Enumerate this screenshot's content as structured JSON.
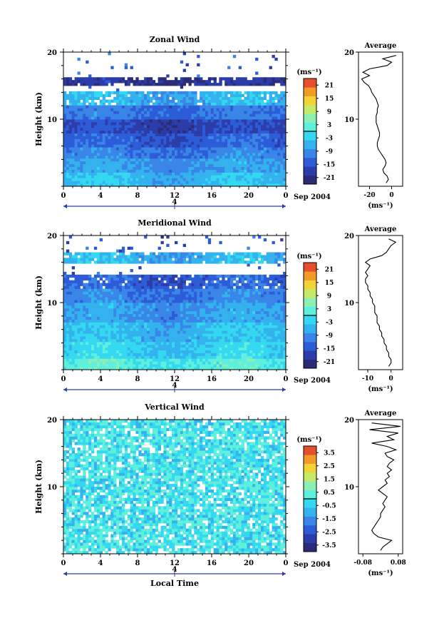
{
  "common": {
    "x_ticks": [
      "0",
      "4",
      "8",
      "12",
      "16",
      "20",
      "0"
    ],
    "day_label": "4",
    "date_label": "Sep 2004",
    "y_ticks": [
      "20",
      "10"
    ],
    "ylabel": "Height (km)",
    "unit_label": "(ms⁻¹)",
    "avg_title": "Average",
    "xlabel": "Local Time"
  },
  "chart_data": [
    {
      "type": "heatmap",
      "title": "Zonal Wind",
      "xlabel": "",
      "ylabel": "Height (km)",
      "xlim": [
        0,
        24
      ],
      "ylim": [
        0,
        20
      ],
      "colorbar": {
        "unit": "(ms⁻¹)",
        "ticks": [
          "21",
          "15",
          "9",
          "3",
          "-3",
          "-9",
          "-15",
          "-21"
        ],
        "range": [
          -24,
          24
        ]
      },
      "description_values": {
        "layers": [
          {
            "h": [
              0,
              2
            ],
            "v": -5
          },
          {
            "h": [
              2,
              4
            ],
            "v": -8
          },
          {
            "h": [
              4,
              6
            ],
            "v": -11
          },
          {
            "h": [
              6,
              8
            ],
            "v": -14
          },
          {
            "h": [
              8,
              10
            ],
            "v": -17
          },
          {
            "h": [
              10,
              12
            ],
            "v": -12
          },
          {
            "h": [
              12,
              14
            ],
            "v": -6
          },
          {
            "h": [
              14,
              15.2
            ],
            "v": null
          },
          {
            "h": [
              15.2,
              16.2
            ],
            "v": -20
          },
          {
            "h": [
              16.2,
              20
            ],
            "v": null
          }
        ]
      },
      "average_profile": {
        "title": "Average",
        "xticks": [
          "-20",
          "0"
        ],
        "xlabel": "(ms⁻¹)",
        "xlim": [
          -30,
          10
        ],
        "height": [
          0.5,
          1,
          1.5,
          2,
          2.5,
          3,
          3.5,
          4,
          4.5,
          5,
          5.5,
          6,
          6.5,
          7,
          7.5,
          8,
          8.5,
          9,
          9.5,
          10,
          10.5,
          11,
          11.5,
          12,
          12.5,
          13,
          13.5,
          14,
          14.5,
          15,
          15.5,
          16,
          16.5,
          17,
          17.5,
          18,
          18.5,
          19,
          19.5
        ],
        "value": [
          -5,
          -3,
          -4,
          -7,
          -8,
          -6,
          -5,
          -6,
          -8,
          -10,
          -12,
          -13,
          -13,
          -12,
          -11,
          -11,
          -12,
          -13,
          -14,
          -14,
          -14,
          -13,
          -13,
          -12,
          -13,
          -14,
          -16,
          -18,
          -19,
          -21,
          -25,
          -27,
          -20,
          -26,
          -20,
          -4,
          0,
          -8,
          4
        ]
      }
    },
    {
      "type": "heatmap",
      "title": "Meridional Wind",
      "xlabel": "",
      "ylabel": "Height (km)",
      "xlim": [
        0,
        24
      ],
      "ylim": [
        0,
        20
      ],
      "colorbar": {
        "unit": "(ms⁻¹)",
        "ticks": [
          "21",
          "15",
          "9",
          "3",
          "-3",
          "-9",
          "-15",
          "-21"
        ],
        "range": [
          -24,
          24
        ]
      },
      "description_values": {
        "layers": [
          {
            "h": [
              0,
              1.5
            ],
            "v": 1
          },
          {
            "h": [
              1.5,
              4
            ],
            "v": -3
          },
          {
            "h": [
              4,
              7
            ],
            "v": -5
          },
          {
            "h": [
              7,
              10
            ],
            "v": -8
          },
          {
            "h": [
              10,
              12
            ],
            "v": -11
          },
          {
            "h": [
              12,
              14
            ],
            "v": -14
          },
          {
            "h": [
              14,
              16
            ],
            "v": null
          },
          {
            "h": [
              16,
              17.5
            ],
            "v": -6
          },
          {
            "h": [
              17.5,
              20
            ],
            "v": null
          }
        ]
      },
      "average_profile": {
        "title": "Average",
        "xticks": [
          "-10",
          "0"
        ],
        "xlabel": "(ms⁻¹)",
        "xlim": [
          -14,
          5
        ],
        "height": [
          0.5,
          1,
          1.5,
          2,
          2.5,
          3,
          3.5,
          4,
          4.5,
          5,
          5.5,
          6,
          6.5,
          7,
          7.5,
          8,
          8.5,
          9,
          9.5,
          10,
          10.5,
          11,
          11.5,
          12,
          12.5,
          13,
          13.5,
          14,
          14.5,
          15,
          15.5,
          16,
          16.5,
          17,
          17.5,
          18,
          18.5,
          19,
          19.5
        ],
        "value": [
          -1,
          0,
          0,
          -1,
          -1,
          -2,
          -2,
          -3,
          -3,
          -4,
          -4,
          -5,
          -5,
          -6,
          -6,
          -6,
          -7,
          -7,
          -7,
          -8,
          -8,
          -9,
          -9,
          -10,
          -10,
          -11,
          -11,
          -10,
          -11,
          -10,
          -9,
          -11,
          -9,
          -4,
          -2,
          -1,
          0,
          2,
          -1
        ]
      }
    },
    {
      "type": "heatmap",
      "title": "Vertical Wind",
      "xlabel": "Local Time",
      "ylabel": "Height (km)",
      "xlim": [
        0,
        24
      ],
      "ylim": [
        0,
        20
      ],
      "colorbar": {
        "unit": "(ms⁻¹)",
        "ticks": [
          "3.5",
          "2.5",
          "1.5",
          "0.5",
          "-0.5",
          "-1.5",
          "-2.5",
          "-3.5"
        ],
        "range": [
          -4,
          4
        ]
      },
      "description_values": {
        "layers": [
          {
            "h": [
              0,
              20
            ],
            "v": 0.3
          }
        ]
      },
      "average_profile": {
        "title": "Average",
        "xticks": [
          "-0.08",
          "0.08"
        ],
        "xlabel": "(ms⁻¹)",
        "xlim": [
          -0.1,
          0.1
        ],
        "height": [
          0.5,
          1,
          1.5,
          2,
          2.5,
          3,
          3.5,
          4,
          4.5,
          5,
          5.5,
          6,
          6.5,
          7,
          7.5,
          8,
          8.5,
          9,
          9.5,
          10,
          10.5,
          11,
          11.5,
          12,
          12.5,
          13,
          13.5,
          14,
          14.5,
          15,
          15.5,
          16,
          16.5,
          17,
          17.5,
          18,
          18.5,
          19,
          19.5
        ],
        "value": [
          0.0,
          0.01,
          0.03,
          0.05,
          -0.01,
          -0.03,
          -0.04,
          -0.03,
          -0.02,
          -0.01,
          0.0,
          0.0,
          0.01,
          0.02,
          0.01,
          0.02,
          0.03,
          0.01,
          -0.01,
          0.01,
          0.03,
          0.02,
          0.04,
          0.03,
          0.05,
          0.03,
          0.04,
          0.06,
          0.03,
          0.02,
          0.07,
          0.03,
          -0.04,
          0.06,
          0.03,
          0.08,
          -0.05,
          0.09,
          -0.04
        ]
      }
    }
  ]
}
